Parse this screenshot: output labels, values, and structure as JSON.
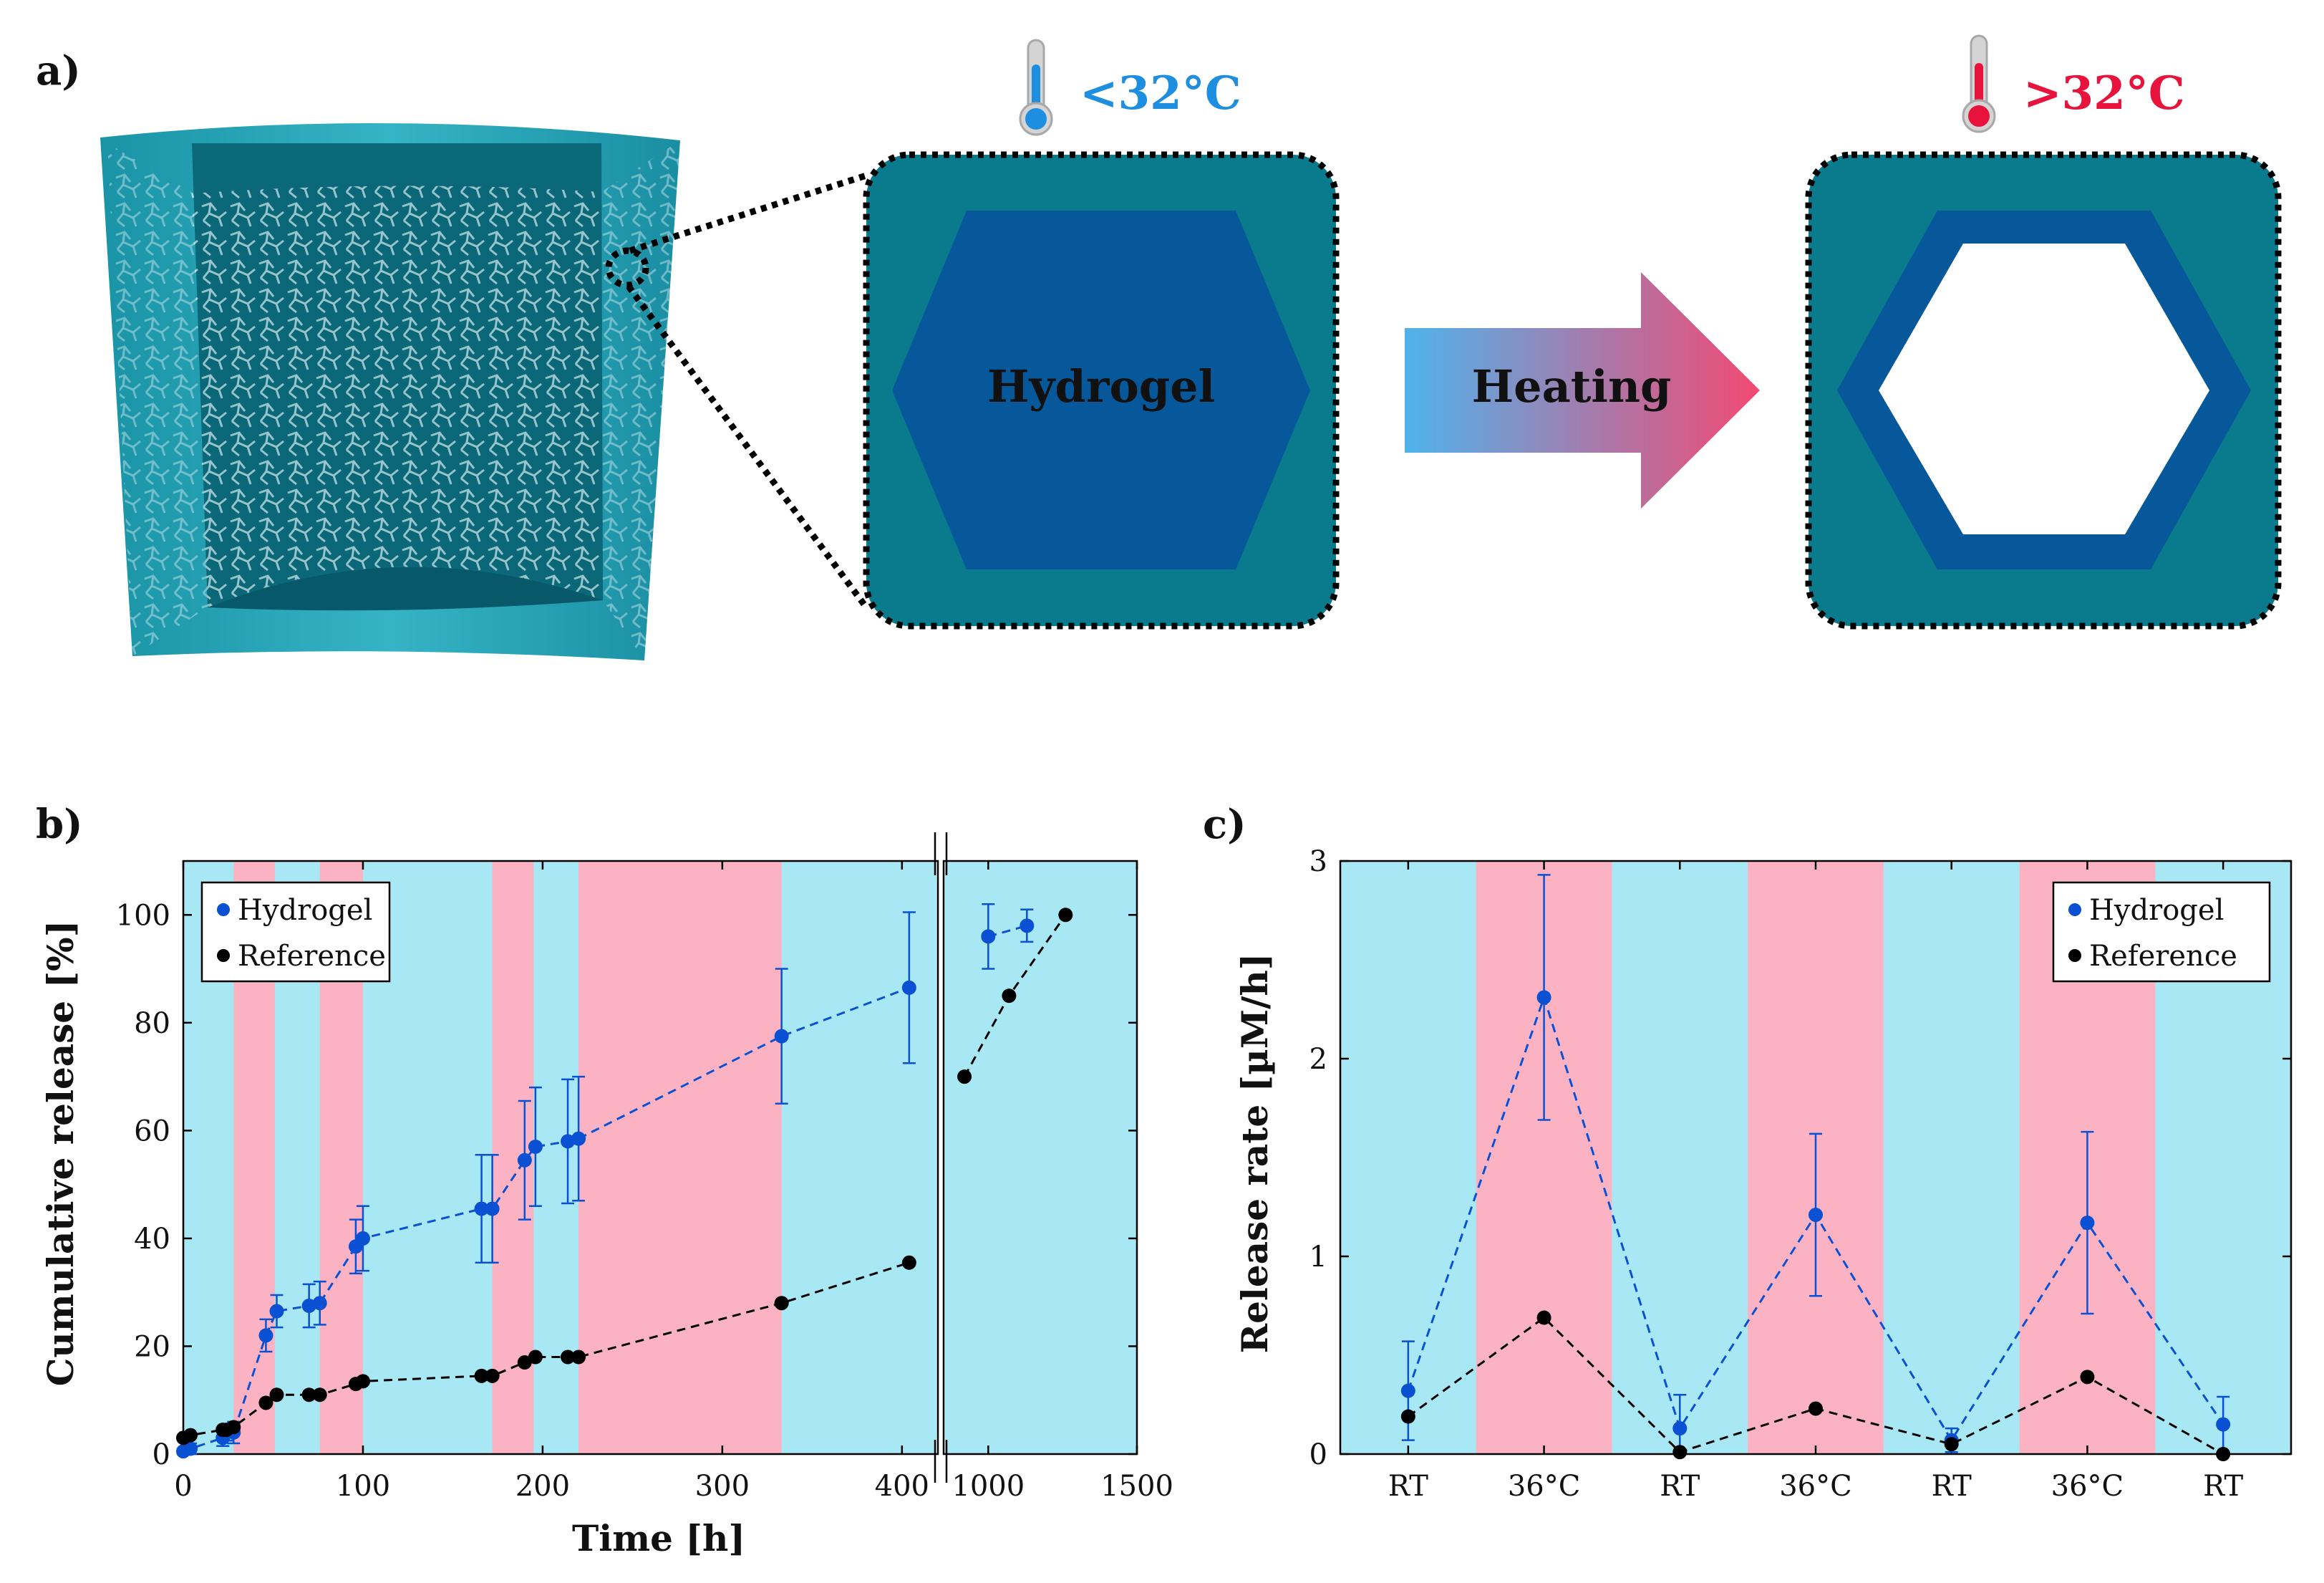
{
  "panel_a": {
    "label": "a)",
    "cold_temp_label": "<32°C",
    "hot_temp_label": ">32°C",
    "hydrogel_label": "Hydrogel",
    "heating_label": "Heating",
    "colors": {
      "cold": "#1e8fe0",
      "hot": "#e8133d",
      "matrix": "#0a7b8c",
      "hydrogel": "#07589a",
      "arrow_start": "#4fb3ec",
      "arrow_end": "#f24a73"
    }
  },
  "chart_data": [
    {
      "panel": "b)",
      "type": "line",
      "xlabel": "Time [h]",
      "ylabel": "Cumulative release [%]",
      "ylim": [
        0,
        110
      ],
      "yticks": [
        0,
        20,
        40,
        60,
        80,
        100
      ],
      "axis_break": true,
      "x_segment_1": {
        "range": [
          0,
          420
        ],
        "ticks": [
          0,
          100,
          200,
          300,
          400
        ]
      },
      "x_segment_2": {
        "range": [
          850,
          1500
        ],
        "ticks": [
          1000,
          1500
        ]
      },
      "background_bands": {
        "room_temp_color": "#a8e8f5",
        "heated_color": "#fbb3c4",
        "heated_intervals": [
          [
            28,
            51
          ],
          [
            76,
            100
          ],
          [
            172,
            195
          ],
          [
            220,
            333
          ]
        ]
      },
      "legend_position": "top-left",
      "series": [
        {
          "name": "Hydrogel",
          "color": "#0a50d2",
          "x": [
            0,
            4,
            22,
            24,
            28,
            46,
            52,
            70,
            76,
            96,
            100,
            166,
            172,
            190,
            196,
            214,
            220,
            333,
            404,
            1000,
            1130
          ],
          "y": [
            0.5,
            1,
            3,
            4,
            4,
            22,
            26.5,
            27.5,
            28,
            38.5,
            40,
            45.5,
            45.5,
            54.5,
            57,
            58,
            58.5,
            77.5,
            86.5,
            96,
            98
          ],
          "err": [
            0.5,
            1,
            1.5,
            1.5,
            2,
            3,
            3,
            4,
            4,
            5,
            6,
            10,
            10,
            11,
            11,
            11.5,
            11.5,
            12.5,
            14,
            6,
            3
          ]
        },
        {
          "name": "Reference",
          "color": "#000000",
          "x": [
            0,
            4,
            22,
            24,
            28,
            46,
            52,
            70,
            76,
            96,
            100,
            166,
            172,
            190,
            196,
            214,
            220,
            333,
            404,
            920,
            1070,
            1260
          ],
          "y": [
            3,
            3.5,
            4.5,
            4.5,
            5,
            9.5,
            11,
            11,
            11,
            13,
            13.5,
            14.5,
            14.5,
            17,
            18,
            18,
            18,
            28,
            35.5,
            70,
            85,
            100
          ]
        }
      ]
    },
    {
      "panel": "c)",
      "type": "line",
      "xlabel": "",
      "ylabel": "Release rate [µM/h]",
      "categories": [
        "RT",
        "36°C",
        "RT",
        "36°C",
        "RT",
        "36°C",
        "RT"
      ],
      "ylim": [
        0,
        3
      ],
      "yticks": [
        0,
        1,
        2,
        3
      ],
      "background_bands": {
        "room_temp_color": "#a8e8f5",
        "heated_color": "#fbb3c4",
        "heated_category_indices": [
          1,
          3,
          5
        ]
      },
      "legend_position": "top-right",
      "series": [
        {
          "name": "Hydrogel",
          "color": "#0a50d2",
          "values": [
            0.32,
            2.31,
            0.13,
            1.21,
            0.07,
            1.17,
            0.15
          ],
          "err": [
            0.25,
            0.62,
            0.17,
            0.41,
            0.06,
            0.46,
            0.14
          ]
        },
        {
          "name": "Reference",
          "color": "#000000",
          "values": [
            0.19,
            0.69,
            0.01,
            0.23,
            0.05,
            0.39,
            0.0
          ]
        }
      ]
    }
  ]
}
